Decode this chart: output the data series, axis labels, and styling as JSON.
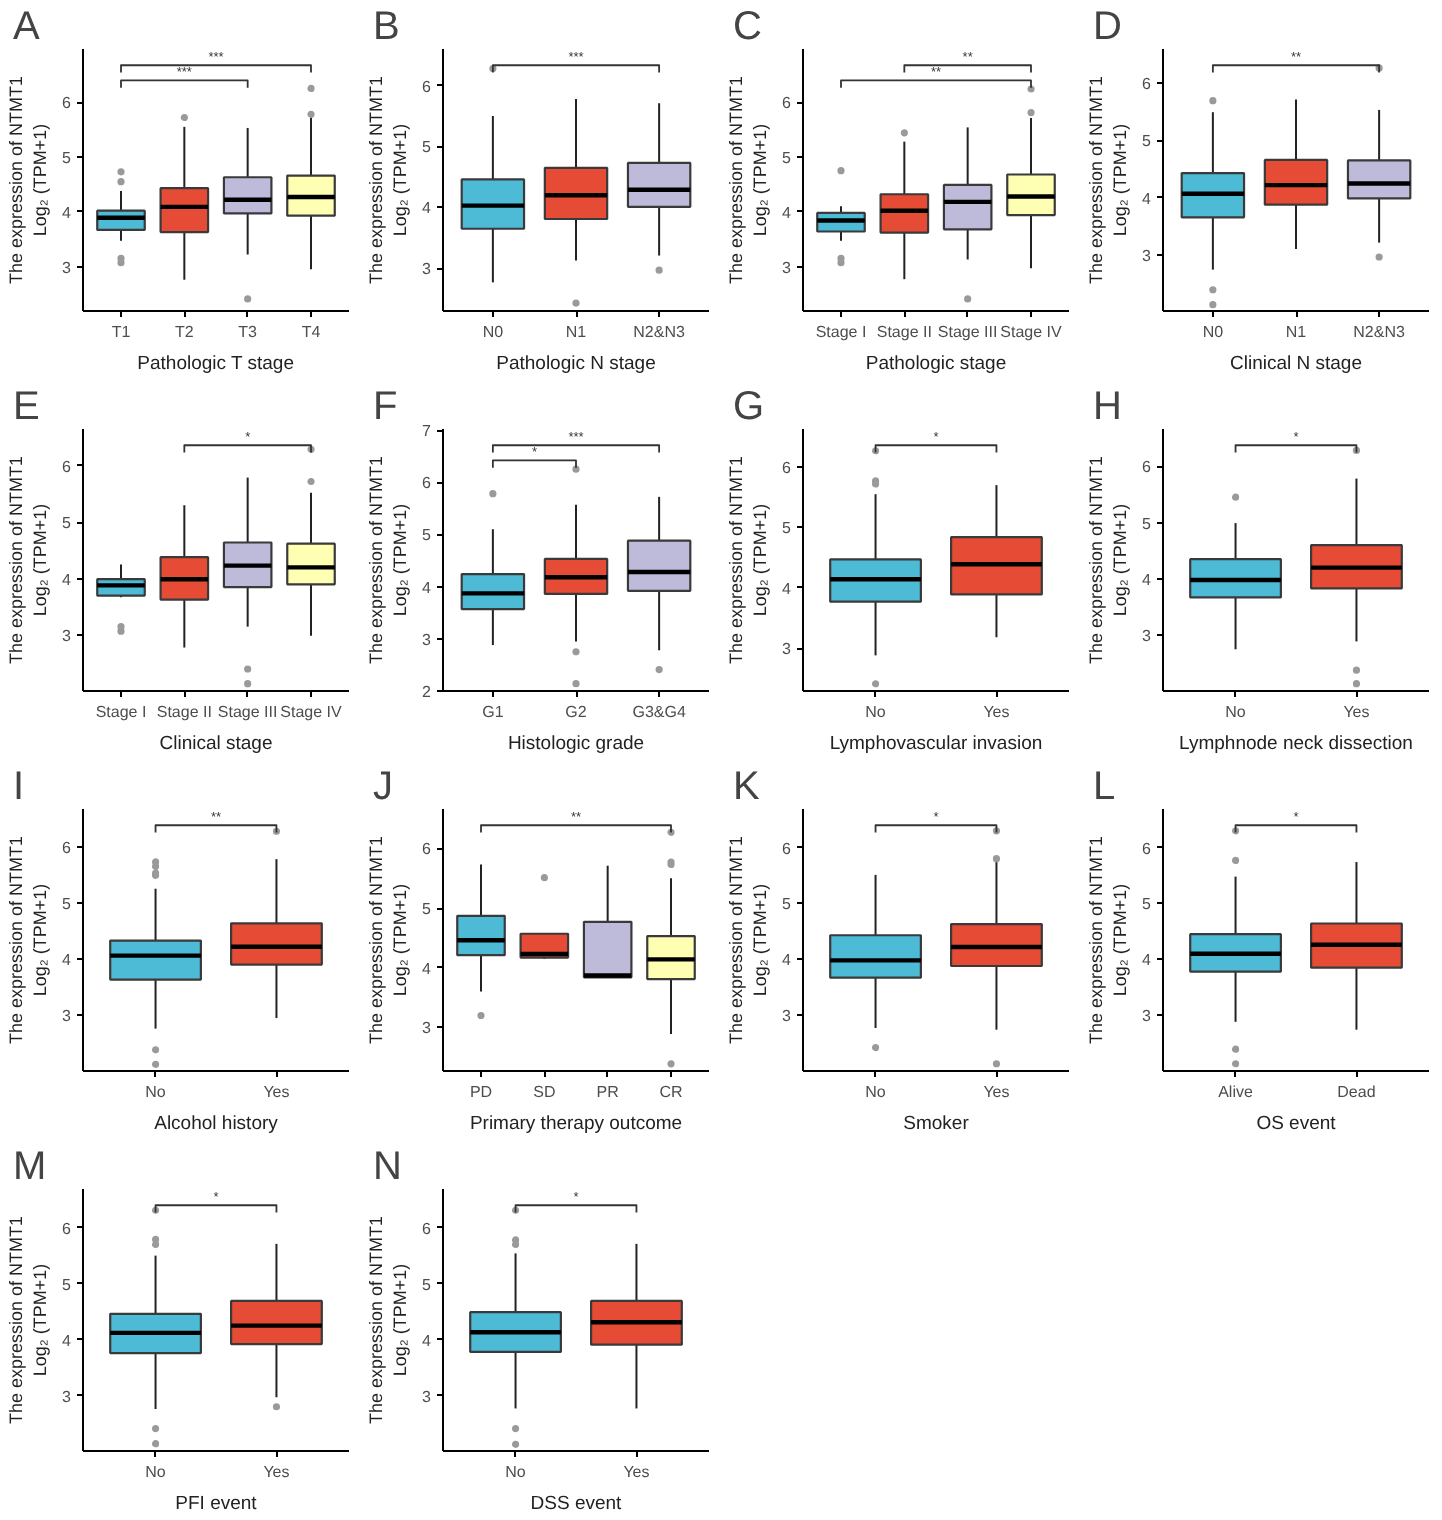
{
  "chart_data": [
    {
      "type": "box",
      "title": "A",
      "xlabel": "Pathologic T stage",
      "ylabel": "The expression of NTMT1\nLog₂ (TPM+1)",
      "categories": [
        "T1",
        "T2",
        "T3",
        "T4"
      ],
      "colors": [
        "#4dbbd5",
        "#e64b35",
        "#bebada",
        "#ffffb3"
      ],
      "boxes": [
        {
          "low": 3.47,
          "q1": 3.67,
          "median": 3.89,
          "q3": 4.02,
          "high": 4.38,
          "outliers": [
            4.73,
            4.55,
            3.15,
            3.07
          ]
        },
        {
          "low": 2.76,
          "q1": 3.63,
          "median": 4.09,
          "q3": 4.43,
          "high": 5.55,
          "outliers": [
            5.72
          ]
        },
        {
          "low": 3.22,
          "q1": 3.97,
          "median": 4.22,
          "q3": 4.63,
          "high": 5.53,
          "outliers": [
            2.41
          ]
        },
        {
          "low": 2.95,
          "q1": 3.93,
          "median": 4.27,
          "q3": 4.66,
          "high": 5.72,
          "outliers": [
            5.78,
            6.25
          ]
        }
      ],
      "ylim": [
        2.19,
        6.97
      ],
      "yticks": [
        3,
        4,
        5,
        6
      ],
      "grid": false,
      "annotations": [
        "***",
        "***"
      ]
    },
    {
      "type": "box",
      "title": "B",
      "xlabel": "Pathologic N stage",
      "ylabel": "The expression of NTMT1\nLog₂ (TPM+1)",
      "categories": [
        "N0",
        "N1",
        "N2&N3"
      ],
      "colors": [
        "#4dbbd5",
        "#e64b35",
        "#bebada"
      ],
      "boxes": [
        {
          "low": 2.77,
          "q1": 3.65,
          "median": 4.03,
          "q3": 4.46,
          "high": 5.5,
          "outliers": [
            6.28
          ]
        },
        {
          "low": 3.13,
          "q1": 3.81,
          "median": 4.2,
          "q3": 4.65,
          "high": 5.78,
          "outliers": [
            2.43
          ]
        },
        {
          "low": 3.21,
          "q1": 4.01,
          "median": 4.29,
          "q3": 4.73,
          "high": 5.71,
          "outliers": [
            2.97
          ]
        }
      ],
      "ylim": [
        2.3,
        6.6
      ],
      "yticks": [
        3,
        4,
        5,
        6
      ],
      "grid": false,
      "annotations": [
        "***"
      ]
    },
    {
      "type": "box",
      "title": "C",
      "xlabel": "Pathologic stage",
      "ylabel": "The expression of NTMT1\nLog₂ (TPM+1)",
      "categories": [
        "Stage I",
        "Stage II",
        "Stage III",
        "Stage IV"
      ],
      "colors": [
        "#4dbbd5",
        "#e64b35",
        "#bebada",
        "#ffffb3"
      ],
      "boxes": [
        {
          "low": 3.47,
          "q1": 3.64,
          "median": 3.84,
          "q3": 3.98,
          "high": 4.1,
          "outliers": [
            4.75,
            3.15,
            3.07
          ]
        },
        {
          "low": 2.77,
          "q1": 3.62,
          "median": 4.02,
          "q3": 4.32,
          "high": 5.28,
          "outliers": [
            5.44
          ]
        },
        {
          "low": 3.13,
          "q1": 3.68,
          "median": 4.18,
          "q3": 4.49,
          "high": 5.54,
          "outliers": [
            2.41
          ]
        },
        {
          "low": 2.97,
          "q1": 3.94,
          "median": 4.28,
          "q3": 4.68,
          "high": 5.71,
          "outliers": [
            5.81,
            6.24
          ]
        }
      ],
      "ylim": [
        2.19,
        6.97
      ],
      "yticks": [
        3,
        4,
        5,
        6
      ],
      "grid": false,
      "annotations": [
        "**",
        "**"
      ]
    },
    {
      "type": "box",
      "title": "D",
      "xlabel": "Clinical N stage",
      "ylabel": "The expression of NTMT1\nLog₂ (TPM+1)",
      "categories": [
        "N0",
        "N1",
        "N2&N3"
      ],
      "colors": [
        "#4dbbd5",
        "#e64b35",
        "#bebada"
      ],
      "boxes": [
        {
          "low": 2.75,
          "q1": 3.66,
          "median": 4.07,
          "q3": 4.43,
          "high": 5.49,
          "outliers": [
            5.69,
            2.4,
            2.14
          ]
        },
        {
          "low": 3.11,
          "q1": 3.88,
          "median": 4.22,
          "q3": 4.66,
          "high": 5.71
        },
        {
          "low": 3.22,
          "q1": 3.99,
          "median": 4.25,
          "q3": 4.65,
          "high": 5.53,
          "outliers": [
            2.97,
            6.26
          ]
        }
      ],
      "ylim": [
        2.03,
        6.59
      ],
      "yticks": [
        3,
        4,
        5,
        6
      ],
      "grid": false,
      "annotations": [
        "**"
      ]
    },
    {
      "type": "box",
      "title": "E",
      "xlabel": "Clinical stage",
      "ylabel": "The expression of NTMT1\nLog₂ (TPM+1)",
      "categories": [
        "Stage I",
        "Stage II",
        "Stage III",
        "Stage IV"
      ],
      "colors": [
        "#4dbbd5",
        "#e64b35",
        "#bebada",
        "#ffffb3"
      ],
      "boxes": [
        {
          "low": 3.67,
          "q1": 3.7,
          "median": 3.88,
          "q3": 3.99,
          "high": 4.25,
          "outliers": [
            3.15,
            3.07
          ]
        },
        {
          "low": 2.78,
          "q1": 3.63,
          "median": 3.99,
          "q3": 4.38,
          "high": 5.3
        },
        {
          "low": 3.15,
          "q1": 3.85,
          "median": 4.23,
          "q3": 4.64,
          "high": 5.79,
          "outliers": [
            2.4,
            2.14
          ]
        },
        {
          "low": 2.99,
          "q1": 3.9,
          "median": 4.2,
          "q3": 4.62,
          "high": 5.52,
          "outliers": [
            5.72,
            6.29
          ]
        }
      ],
      "ylim": [
        2.01,
        6.65
      ],
      "yticks": [
        3,
        4,
        5,
        6
      ],
      "grid": false,
      "annotations": [
        "*"
      ]
    },
    {
      "type": "box",
      "title": "F",
      "xlabel": "Histologic grade",
      "ylabel": "The expression of NTMT1\nLog₂ (TPM+1)",
      "categories": [
        "G1",
        "G2",
        "G3&G4"
      ],
      "colors": [
        "#4dbbd5",
        "#e64b35",
        "#bebada"
      ],
      "boxes": [
        {
          "low": 2.88,
          "q1": 3.57,
          "median": 3.87,
          "q3": 4.24,
          "high": 5.1,
          "outliers": [
            5.78
          ]
        },
        {
          "low": 2.95,
          "q1": 3.86,
          "median": 4.18,
          "q3": 4.53,
          "high": 5.57,
          "outliers": [
            6.25,
            2.75,
            2.14
          ]
        },
        {
          "low": 2.78,
          "q1": 3.92,
          "median": 4.28,
          "q3": 4.88,
          "high": 5.72,
          "outliers": [
            2.41
          ]
        }
      ],
      "ylim": [
        2.0,
        7.02
      ],
      "yticks": [
        2,
        3,
        4,
        5,
        6,
        7
      ],
      "grid": false,
      "annotations": [
        "***",
        "*"
      ]
    },
    {
      "type": "box",
      "title": "G",
      "xlabel": "Lymphovascular invasion",
      "ylabel": "The expression of NTMT1\nLog₂ (TPM+1)",
      "categories": [
        "No",
        "Yes"
      ],
      "colors": [
        "#4dbbd5",
        "#e64b35"
      ],
      "boxes": [
        {
          "low": 2.88,
          "q1": 3.77,
          "median": 4.14,
          "q3": 4.47,
          "high": 5.55,
          "outliers": [
            5.77,
            5.72,
            6.27,
            2.41
          ]
        },
        {
          "low": 3.18,
          "q1": 3.89,
          "median": 4.39,
          "q3": 4.84,
          "high": 5.7
        }
      ],
      "ylim": [
        2.29,
        6.63
      ],
      "yticks": [
        3,
        4,
        5,
        6
      ],
      "grid": false,
      "annotations": [
        "*"
      ]
    },
    {
      "type": "box",
      "title": "H",
      "xlabel": "Lymphnode neck dissection",
      "ylabel": "The expression of NTMT1\nLog₂ (TPM+1)",
      "categories": [
        "No",
        "Yes"
      ],
      "colors": [
        "#4dbbd5",
        "#e64b35"
      ],
      "boxes": [
        {
          "low": 2.75,
          "q1": 3.67,
          "median": 3.98,
          "q3": 4.35,
          "high": 4.99,
          "outliers": [
            5.45
          ]
        },
        {
          "low": 2.89,
          "q1": 3.83,
          "median": 4.2,
          "q3": 4.6,
          "high": 5.78,
          "outliers": [
            2.38,
            2.14,
            6.28
          ]
        }
      ],
      "ylim": [
        2.01,
        6.66
      ],
      "yticks": [
        3,
        4,
        5,
        6
      ],
      "grid": false,
      "annotations": [
        "*"
      ]
    },
    {
      "type": "box",
      "title": "I",
      "xlabel": "Alcohol history",
      "ylabel": "The expression of NTMT1\nLog₂ (TPM+1)",
      "categories": [
        "No",
        "Yes"
      ],
      "colors": [
        "#4dbbd5",
        "#e64b35"
      ],
      "boxes": [
        {
          "low": 2.75,
          "q1": 3.63,
          "median": 4.06,
          "q3": 4.33,
          "high": 5.26,
          "outliers": [
            5.74,
            5.66,
            5.54,
            5.5,
            2.37,
            2.11
          ]
        },
        {
          "low": 2.94,
          "q1": 3.9,
          "median": 4.22,
          "q3": 4.64,
          "high": 5.79,
          "outliers": [
            6.29
          ]
        }
      ],
      "ylim": [
        1.99,
        6.69
      ],
      "yticks": [
        3,
        4,
        5,
        6
      ],
      "grid": false,
      "annotations": [
        "**"
      ]
    },
    {
      "type": "box",
      "title": "J",
      "xlabel": "Primary therapy outcome",
      "ylabel": "The expression of NTMT1\nLog₂ (TPM+1)",
      "categories": [
        "PD",
        "SD",
        "PR",
        "CR"
      ],
      "colors": [
        "#4dbbd5",
        "#e64b35",
        "#bebada",
        "#ffffb3"
      ],
      "boxes": [
        {
          "low": 3.6,
          "q1": 4.21,
          "median": 4.46,
          "q3": 4.87,
          "high": 5.73,
          "outliers": [
            3.2
          ]
        },
        {
          "low": 4.15,
          "q1": 4.17,
          "median": 4.23,
          "q3": 4.57,
          "high": 4.57,
          "outliers": [
            5.51
          ]
        },
        {
          "low": 3.84,
          "q1": 3.84,
          "median": 3.87,
          "q3": 4.77,
          "high": 5.71
        },
        {
          "low": 2.89,
          "q1": 3.81,
          "median": 4.14,
          "q3": 4.53,
          "high": 5.5,
          "outliers": [
            5.77,
            5.73,
            6.27,
            2.39
          ]
        }
      ],
      "ylim": [
        2.27,
        6.66
      ],
      "yticks": [
        3,
        4,
        5,
        6
      ],
      "grid": false,
      "annotations": [
        "**"
      ]
    },
    {
      "type": "box",
      "title": "K",
      "xlabel": "Smoker",
      "ylabel": "The expression of NTMT1\nLog₂ (TPM+1)",
      "categories": [
        "No",
        "Yes"
      ],
      "colors": [
        "#4dbbd5",
        "#e64b35"
      ],
      "boxes": [
        {
          "low": 2.77,
          "q1": 3.67,
          "median": 3.98,
          "q3": 4.43,
          "high": 5.51,
          "outliers": [
            2.42
          ]
        },
        {
          "low": 2.74,
          "q1": 3.88,
          "median": 4.22,
          "q3": 4.63,
          "high": 5.74,
          "outliers": [
            5.8,
            6.3,
            2.13
          ]
        }
      ],
      "ylim": [
        2.0,
        6.69
      ],
      "yticks": [
        3,
        4,
        5,
        6
      ],
      "grid": false,
      "annotations": [
        "*"
      ]
    },
    {
      "type": "box",
      "title": "L",
      "xlabel": "OS event",
      "ylabel": "The expression of NTMT1\nLog₂ (TPM+1)",
      "categories": [
        "Alive",
        "Dead"
      ],
      "colors": [
        "#4dbbd5",
        "#e64b35"
      ],
      "boxes": [
        {
          "low": 2.88,
          "q1": 3.78,
          "median": 4.1,
          "q3": 4.45,
          "high": 5.48,
          "outliers": [
            5.77,
            6.3,
            2.39,
            2.13
          ]
        },
        {
          "low": 2.74,
          "q1": 3.85,
          "median": 4.26,
          "q3": 4.64,
          "high": 5.74
        }
      ],
      "ylim": [
        2.0,
        6.69
      ],
      "yticks": [
        3,
        4,
        5,
        6
      ],
      "grid": false,
      "annotations": [
        "*"
      ]
    },
    {
      "type": "box",
      "title": "M",
      "xlabel": "PFI event",
      "ylabel": "The expression of NTMT1\nLog₂ (TPM+1)",
      "categories": [
        "No",
        "Yes"
      ],
      "colors": [
        "#4dbbd5",
        "#e64b35"
      ],
      "boxes": [
        {
          "low": 2.76,
          "q1": 3.76,
          "median": 4.12,
          "q3": 4.46,
          "high": 5.5,
          "outliers": [
            5.79,
            5.7,
            6.31,
            2.41,
            2.14
          ]
        },
        {
          "low": 2.97,
          "q1": 3.92,
          "median": 4.25,
          "q3": 4.69,
          "high": 5.71,
          "outliers": [
            2.8
          ]
        }
      ],
      "ylim": [
        2.01,
        6.69
      ],
      "yticks": [
        3,
        4,
        5,
        6
      ],
      "grid": false,
      "annotations": [
        "*"
      ]
    },
    {
      "type": "box",
      "title": "N",
      "xlabel": "DSS event",
      "ylabel": "The expression of NTMT1\nLog₂ (TPM+1)",
      "categories": [
        "No",
        "Yes"
      ],
      "colors": [
        "#4dbbd5",
        "#e64b35"
      ],
      "boxes": [
        {
          "low": 2.77,
          "q1": 3.78,
          "median": 4.13,
          "q3": 4.49,
          "high": 5.54,
          "outliers": [
            5.78,
            5.7,
            6.31,
            2.41,
            2.13
          ]
        },
        {
          "low": 2.77,
          "q1": 3.91,
          "median": 4.31,
          "q3": 4.69,
          "high": 5.71
        }
      ],
      "ylim": [
        2.01,
        6.69
      ],
      "yticks": [
        3,
        4,
        5,
        6
      ],
      "grid": false,
      "annotations": [
        "*"
      ]
    }
  ]
}
